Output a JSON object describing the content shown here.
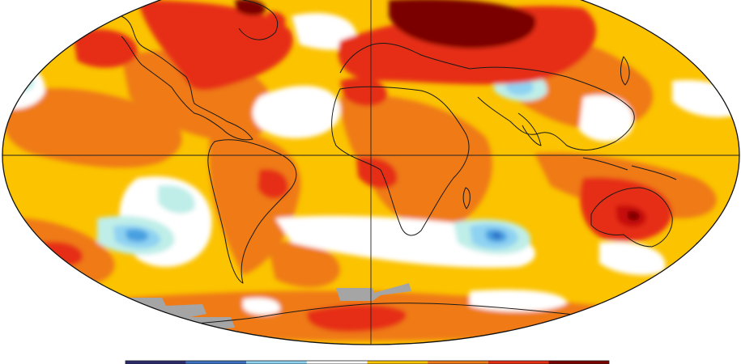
{
  "map": {
    "projection": "robinson",
    "palette": {
      "ocean_base": "#fbc300",
      "warm_light": "#f5a000",
      "warm": "#ef7a14",
      "hot": "#e62d12",
      "very_hot": "#c81010",
      "extreme": "#7a0000",
      "neutral": "#ffffff",
      "cool_light": "#bfeee8",
      "cool": "#8ed2f2",
      "cold": "#4aa0e0",
      "cold_deep": "#2f6fc8",
      "no_data": "#a5a5a5",
      "coastline": "#1a1a1a"
    },
    "legend": {
      "colors": [
        "#2a2a6e",
        "#3b6fc0",
        "#8ed2f2",
        "#ffffff",
        "#fbc300",
        "#ef7a14",
        "#e62d12",
        "#7a0000"
      ]
    }
  }
}
